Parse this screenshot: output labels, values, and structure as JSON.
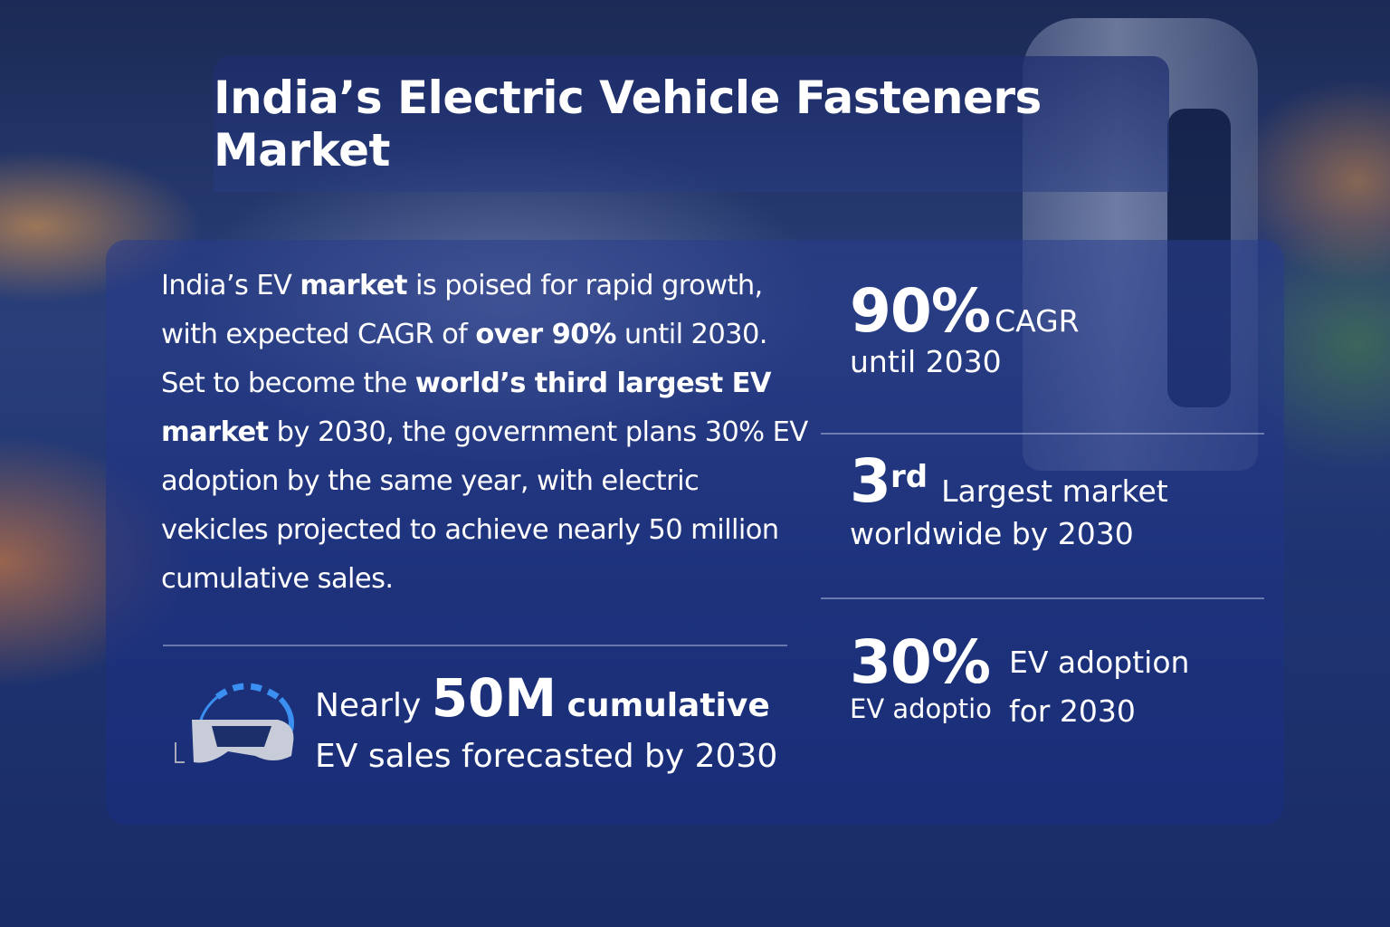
{
  "title": "India’s Electric Vehicle Fasteners Market",
  "intro": {
    "p1": "India’s EV ",
    "b1": "market",
    "p2": " is poised for rapid growth, with expected CAGR of ",
    "b2": "over 90%",
    "p3": " until 2030. Set to become the ",
    "b3": "world’s third largest EV market",
    "p4": " by 2030, the government plans 30% EV adoption by the same year, with electric vekicles projected to achieve nearly 50 million cumulative sales."
  },
  "sales": {
    "prefix": "Nearly",
    "value": "50M",
    "suffix": "cumulative",
    "line2": "EV sales forecasted by 2030",
    "icon": "ev-charger-plug-icon"
  },
  "stats": [
    {
      "value": "90%",
      "label": "CAGR",
      "sub": "until 2030"
    },
    {
      "value": "3",
      "sup": "rd",
      "label": "Largest market",
      "sub": "worldwide by 2030"
    },
    {
      "value": "30%",
      "label": "EV adoption",
      "label2": "for 2030",
      "sub": "EV adoption"
    }
  ]
}
